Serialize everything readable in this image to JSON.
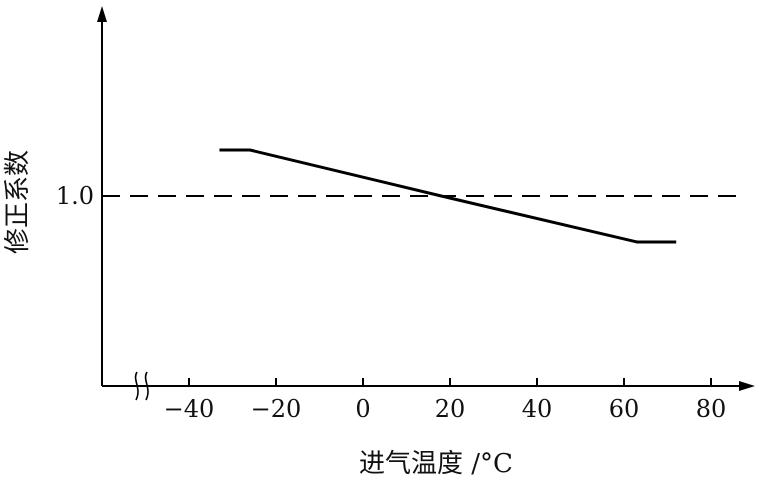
{
  "chart_data": {
    "type": "line",
    "xlabel": "进气温度 /°C",
    "ylabel": "修正系数",
    "x_ticks": [
      -40,
      -20,
      0,
      20,
      40,
      60,
      80
    ],
    "x_tick_labels": [
      "−40",
      "−20",
      "0",
      "20",
      "40",
      "60",
      "80"
    ],
    "y_ticks": [
      1.0
    ],
    "y_tick_labels": [
      "1.0"
    ],
    "xlim": [
      -45,
      85
    ],
    "ylim": [
      0.6,
      1.4
    ],
    "reference_line": {
      "y": 1.0,
      "style": "dashed"
    },
    "axis_break": "x",
    "series": [
      {
        "x": [
          -33,
          -26,
          18,
          63,
          72
        ],
        "y": [
          1.1,
          1.1,
          1.0,
          0.9,
          0.9
        ]
      }
    ],
    "grid": false,
    "legend": "none"
  }
}
